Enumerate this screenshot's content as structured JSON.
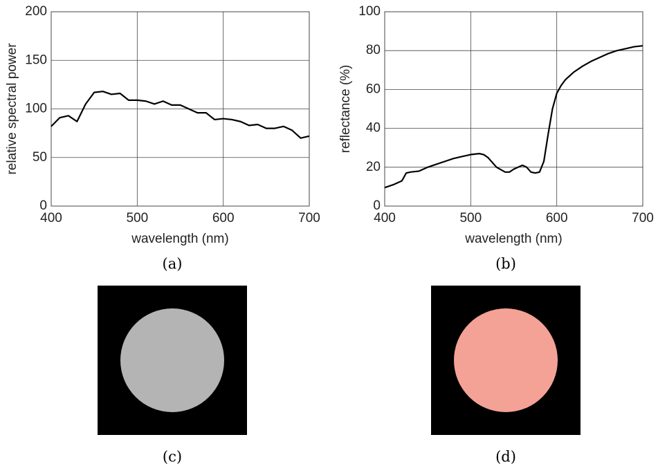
{
  "chart_data": [
    {
      "type": "line",
      "xlabel": "wavelength (nm)",
      "ylabel": "relative spectral power",
      "x": [
        400,
        410,
        420,
        430,
        440,
        450,
        460,
        470,
        480,
        490,
        500,
        510,
        520,
        530,
        540,
        550,
        560,
        570,
        580,
        590,
        600,
        610,
        620,
        630,
        640,
        650,
        660,
        670,
        680,
        690,
        700
      ],
      "values": [
        82,
        91,
        93,
        87,
        105,
        117,
        118,
        115,
        116,
        109,
        109,
        108,
        105,
        108,
        104,
        104,
        100,
        96,
        96,
        89,
        90,
        89,
        87,
        83,
        84,
        80,
        80,
        82,
        78,
        70,
        72
      ],
      "color": "#000000",
      "xlim": [
        400,
        700
      ],
      "xticks": [
        400,
        500,
        600,
        700
      ],
      "ylim": [
        0,
        200
      ],
      "yticks": [
        0,
        50,
        100,
        150,
        200
      ],
      "grid": true
    },
    {
      "type": "line",
      "xlabel": "wavelength (nm)",
      "ylabel": "reflectance (%)",
      "x": [
        400,
        410,
        420,
        425,
        430,
        440,
        450,
        460,
        470,
        480,
        490,
        500,
        510,
        515,
        520,
        530,
        540,
        545,
        550,
        560,
        565,
        570,
        575,
        580,
        585,
        590,
        595,
        600,
        605,
        610,
        620,
        630,
        640,
        650,
        660,
        670,
        680,
        690,
        700
      ],
      "values": [
        9.5,
        11,
        13,
        17,
        17.5,
        18,
        20,
        21.5,
        23,
        24.5,
        25.5,
        26.5,
        27,
        26.5,
        25,
        20,
        17.5,
        17.5,
        19,
        21,
        20,
        17.5,
        17,
        17.5,
        23,
        37,
        50,
        58,
        62,
        65,
        69,
        72,
        74.5,
        76.5,
        78.5,
        80,
        81,
        82,
        82.5
      ],
      "color": "#000000",
      "xlim": [
        400,
        700
      ],
      "xticks": [
        400,
        500,
        600,
        700
      ],
      "ylim": [
        0,
        100
      ],
      "yticks": [
        0,
        20,
        40,
        60,
        80,
        100
      ],
      "grid": true
    }
  ],
  "captions": [
    "(a)",
    "(b)",
    "(c)",
    "(d)"
  ]
}
